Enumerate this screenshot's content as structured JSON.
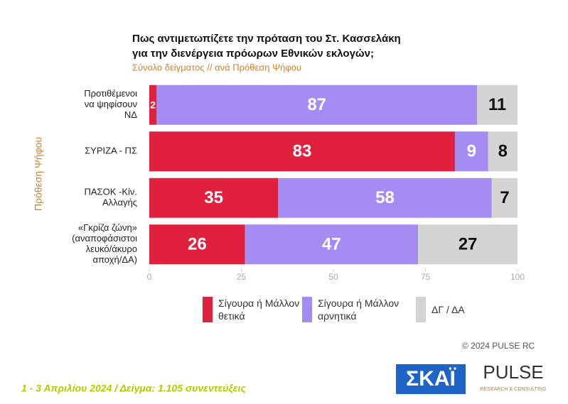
{
  "chart_data": {
    "type": "stacked_barh",
    "title": [
      "Πως αντιμετωπίζετε την πρόταση του Στ. Κασσελάκη",
      "για την διενέργεια πρόωρων Εθνικών εκλογών;"
    ],
    "subtitle": "Σύνολο δείγματος // ανά Πρόθεση Ψήφου",
    "ylabel": "Πρόθεση Ψήφου",
    "categories": [
      [
        "Προτιθέμενοι",
        "να ψηφίσουν",
        "ΝΔ"
      ],
      [
        "ΣΥΡΙΖΑ - ΠΣ"
      ],
      [
        "ΠΑΣΟΚ -Κίν.",
        "Αλλαγής"
      ],
      [
        "«Γκρίζα ζώνη»",
        "(αναποφάσιστοι",
        "λευκό/άκυρο",
        "αποχή/ΔΑ)"
      ]
    ],
    "series": [
      {
        "name": "Σίγουρα ή Μάλλον θετικά",
        "color": "#e0213d",
        "values": [
          2,
          83,
          35,
          26
        ]
      },
      {
        "name": "Σίγουρα ή Μάλλον αρνητικά",
        "color": "#a58cf2",
        "values": [
          87,
          9,
          58,
          47
        ]
      },
      {
        "name": "ΔΓ / ΔΑ",
        "color": "#d4d4d4",
        "values": [
          11,
          8,
          7,
          27
        ]
      }
    ],
    "xlim": [
      0,
      100
    ],
    "xticks": [
      0,
      25,
      50,
      75,
      100
    ]
  },
  "footer": {
    "copyright": "© 2024 PULSE RC",
    "note": "1 - 3  Απριλίου 2024  /  Δείγμα:  1.105 συνεντεύξεις",
    "logo1": "ΣΚΑΪ",
    "logo2": "PULSE",
    "logo2_sub": "RESEARCH & CONSULTING"
  }
}
